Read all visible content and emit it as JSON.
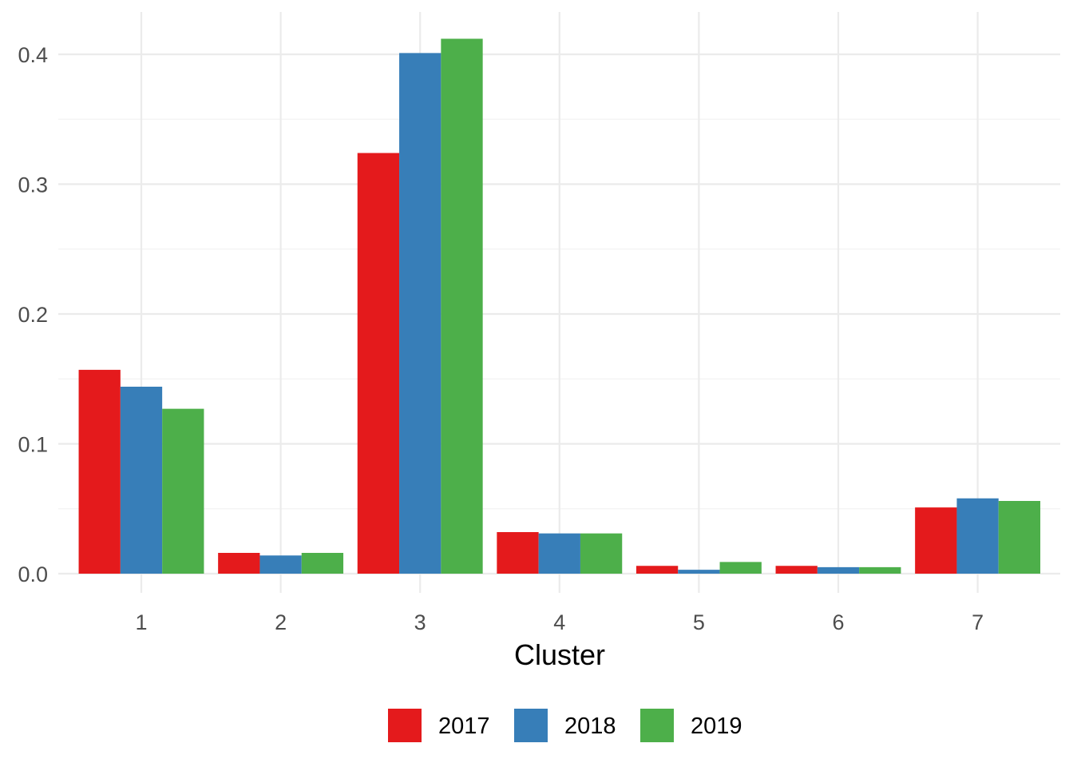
{
  "chart_data": {
    "type": "bar",
    "title": "",
    "xlabel": "Cluster",
    "ylabel": "",
    "categories": [
      "1",
      "2",
      "3",
      "4",
      "5",
      "6",
      "7"
    ],
    "series": [
      {
        "name": "2017",
        "color": "#e41a1c",
        "values": [
          0.157,
          0.016,
          0.324,
          0.032,
          0.006,
          0.006,
          0.051
        ]
      },
      {
        "name": "2018",
        "color": "#377eb8",
        "values": [
          0.144,
          0.014,
          0.401,
          0.031,
          0.003,
          0.005,
          0.058
        ]
      },
      {
        "name": "2019",
        "color": "#4daf4a",
        "values": [
          0.127,
          0.016,
          0.412,
          0.031,
          0.009,
          0.005,
          0.056
        ]
      }
    ],
    "y_ticks": [
      "0.0",
      "0.1",
      "0.2",
      "0.3",
      "0.4"
    ],
    "ylim": [
      0,
      0.4
    ],
    "grid": true,
    "legend_position": "bottom"
  }
}
